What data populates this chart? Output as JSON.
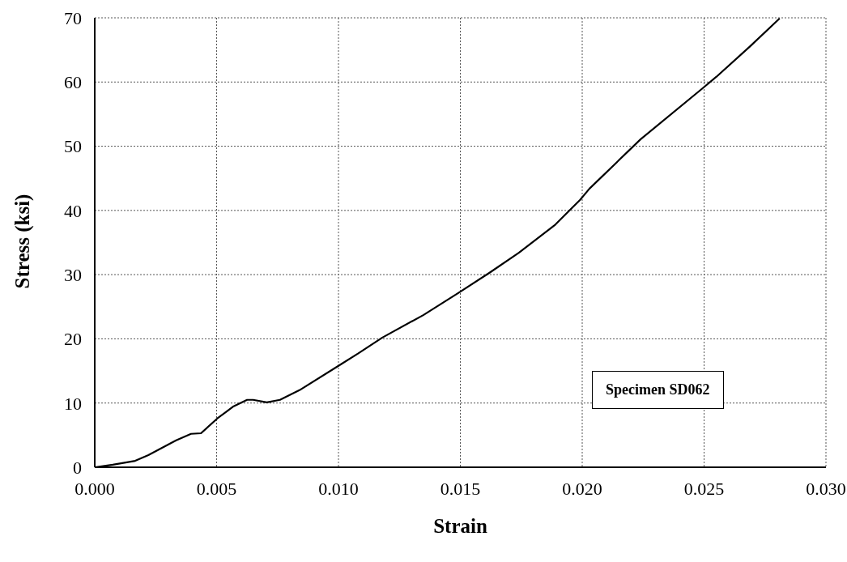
{
  "chart_data": {
    "type": "line",
    "xlabel": "Strain",
    "ylabel": "Stress (ksi)",
    "annotations": [
      "Specimen SD062"
    ],
    "series": [
      {
        "color": "#000000",
        "x": [
          0,
          0.00074,
          0.00166,
          0.0022,
          0.00334,
          0.00395,
          0.00436,
          0.00503,
          0.0057,
          0.00625,
          0.0065,
          0.00706,
          0.0076,
          0.0084,
          0.01,
          0.0108,
          0.0118,
          0.01348,
          0.0149,
          0.0162,
          0.0174,
          0.0189,
          0.0199,
          0.0203,
          0.0224,
          0.0249,
          0.0255,
          0.0269,
          0.0281
        ],
        "values": [
          0,
          0.4,
          1.0,
          1.9,
          4.2,
          5.2,
          5.3,
          7.6,
          9.5,
          10.5,
          10.5,
          10.1,
          10.5,
          12.0,
          15.8,
          17.7,
          20.2,
          23.7,
          27.1,
          30.3,
          33.4,
          37.8,
          41.6,
          43.4,
          51.1,
          58.9,
          60.8,
          65.6,
          69.9
        ]
      }
    ],
    "xlim": [
      0,
      0.03
    ],
    "xticks": [
      {
        "value": 0,
        "label": "0.000"
      },
      {
        "value": 0.005,
        "label": "0.005"
      },
      {
        "value": 0.01,
        "label": "0.010"
      },
      {
        "value": 0.015,
        "label": "0.015"
      },
      {
        "value": 0.02,
        "label": "0.020"
      },
      {
        "value": 0.025,
        "label": "0.025"
      },
      {
        "value": 0.03,
        "label": "0.030"
      }
    ],
    "ylim": [
      0,
      70
    ],
    "yticks": [
      0,
      10,
      20,
      30,
      40,
      50,
      60,
      70
    ],
    "grid": true,
    "line_style": "solid",
    "marker": "none"
  }
}
